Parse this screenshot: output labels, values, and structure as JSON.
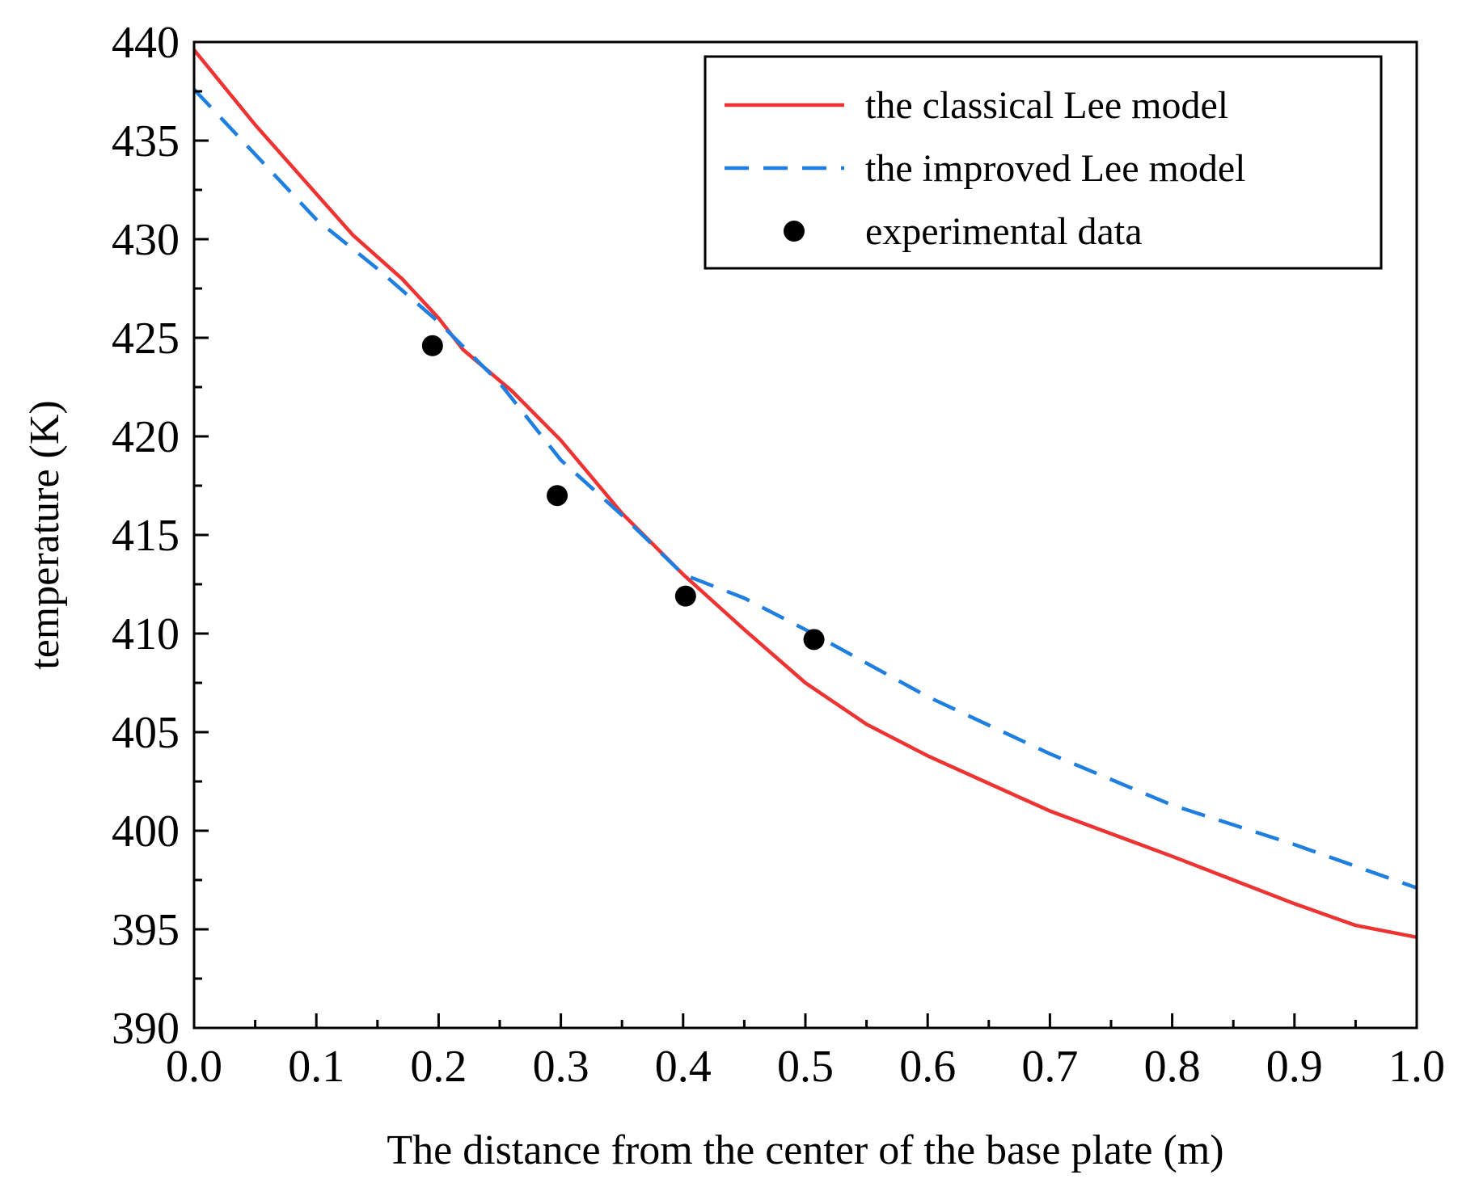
{
  "chart_data": {
    "type": "line",
    "xlabel": "The distance from the center of the base plate (m)",
    "ylabel": "temperature (K)",
    "xlim": [
      0.0,
      1.0
    ],
    "ylim": [
      390,
      440
    ],
    "xticks": [
      "0.0",
      "0.1",
      "0.2",
      "0.3",
      "0.4",
      "0.5",
      "0.6",
      "0.7",
      "0.8",
      "0.9",
      "1.0"
    ],
    "yticks": [
      "390",
      "395",
      "400",
      "405",
      "410",
      "415",
      "420",
      "425",
      "430",
      "435",
      "440"
    ],
    "grid": false,
    "legend_position": "top-right",
    "series": [
      {
        "name": "the classical Lee model",
        "kind": "line",
        "style": "solid",
        "color": "#ee3333",
        "x": [
          0.0,
          0.05,
          0.1,
          0.13,
          0.17,
          0.2,
          0.22,
          0.26,
          0.3,
          0.35,
          0.4,
          0.45,
          0.5,
          0.55,
          0.6,
          0.7,
          0.8,
          0.9,
          0.95,
          1.0
        ],
        "y": [
          439.6,
          435.8,
          432.3,
          430.2,
          428.0,
          426.0,
          424.4,
          422.3,
          419.8,
          416.1,
          413.0,
          410.2,
          407.5,
          405.4,
          403.8,
          401.0,
          398.7,
          396.3,
          395.2,
          394.6
        ]
      },
      {
        "name": "the improved Lee model",
        "kind": "line",
        "style": "dashed",
        "color": "#1f7fe0",
        "x": [
          0.0,
          0.05,
          0.1,
          0.15,
          0.2,
          0.25,
          0.3,
          0.35,
          0.4,
          0.45,
          0.5,
          0.6,
          0.7,
          0.8,
          0.9,
          1.0
        ],
        "y": [
          437.6,
          434.3,
          431.0,
          428.5,
          425.8,
          422.7,
          418.8,
          416.0,
          413.0,
          411.8,
          410.2,
          406.8,
          403.9,
          401.3,
          399.3,
          397.1
        ]
      },
      {
        "name": "experimental data",
        "kind": "scatter",
        "color": "#000000",
        "x": [
          0.195,
          0.297,
          0.402,
          0.507
        ],
        "y": [
          424.6,
          417.0,
          411.9,
          409.7
        ]
      }
    ]
  }
}
